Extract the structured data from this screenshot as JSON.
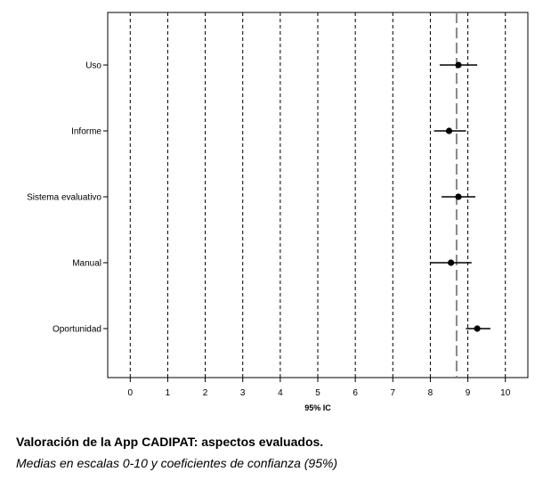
{
  "chart_data": {
    "type": "forest",
    "categories": [
      "Uso",
      "Informe",
      "Sistema evaluativo",
      "Manual",
      "Oportunidad"
    ],
    "means": [
      8.75,
      8.5,
      8.75,
      8.55,
      9.25
    ],
    "ci_lower": [
      8.25,
      8.1,
      8.3,
      8.0,
      8.95
    ],
    "ci_upper": [
      9.25,
      8.95,
      9.2,
      9.1,
      9.6
    ],
    "reference_line": 8.7,
    "xlim": [
      -0.6,
      10.6
    ],
    "xticks": [
      0,
      1,
      2,
      3,
      4,
      5,
      6,
      7,
      8,
      9,
      10
    ],
    "xlabel": "95% IC",
    "grid": "vertical dashed",
    "colors": {
      "marker": "#000000",
      "grid": "#000000",
      "reference": "#888888"
    }
  },
  "caption": {
    "title": "Valoración de la App CADIPAT: aspectos evaluados.",
    "subtitle": "Medias en escalas 0-10 y coeficientes de confianza (95%)"
  }
}
